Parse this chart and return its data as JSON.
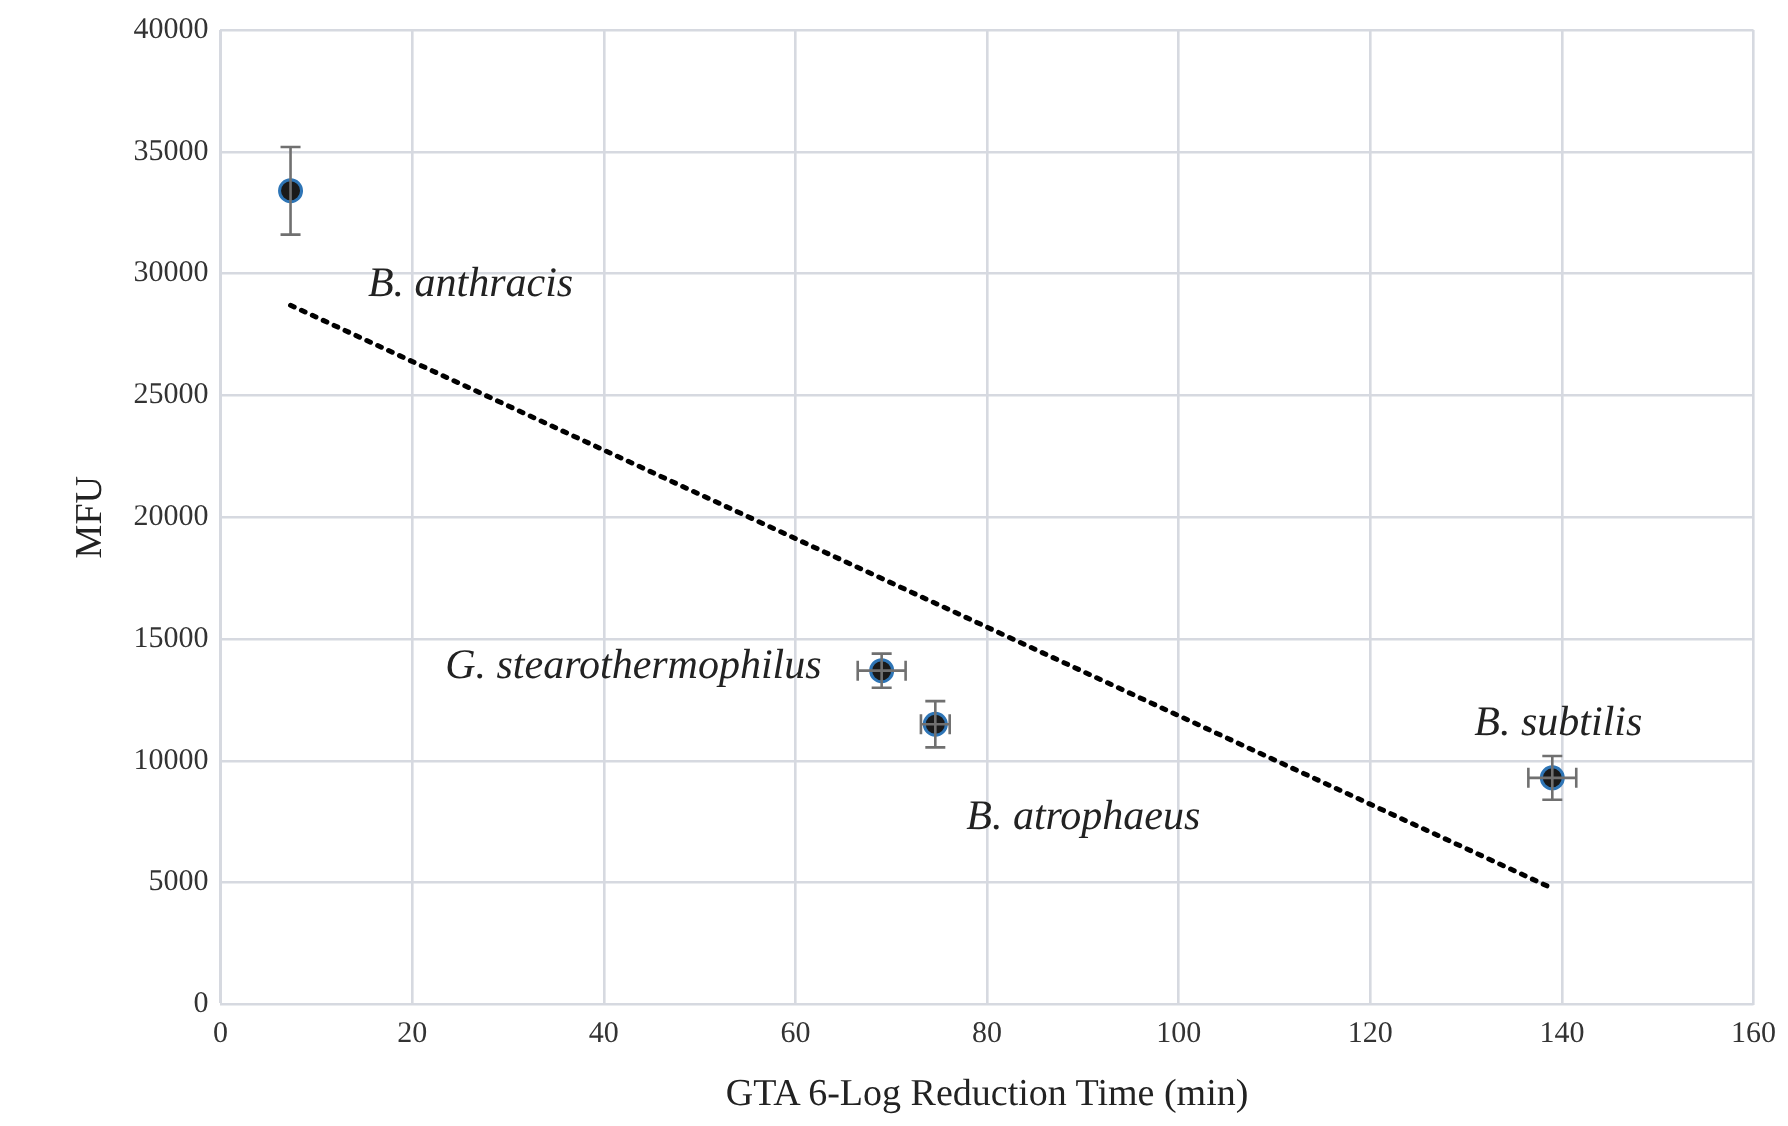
{
  "chart_data": {
    "type": "scatter",
    "xlabel": "GTA 6-Log Reduction Time (min)",
    "ylabel": "MFU",
    "xlim": [
      0,
      160
    ],
    "xticks": [
      0,
      20,
      40,
      60,
      80,
      100,
      120,
      140,
      160
    ],
    "ylim": [
      0,
      40000
    ],
    "yticks": [
      0,
      5000,
      10000,
      15000,
      20000,
      25000,
      30000,
      35000,
      40000
    ],
    "grid": true,
    "legend": false,
    "series": [
      {
        "color": "#1a1a1a",
        "marker": "circle",
        "x": [
          7.3,
          69,
          74.6,
          139
        ],
        "values": [
          33400,
          13700,
          11500,
          9300
        ],
        "errors": [
          1800,
          700,
          950,
          900
        ],
        "xerrors": [
          null,
          2.5,
          1.5,
          2.5
        ]
      },
      {
        "type": "line",
        "color": "#000000",
        "marker": "none",
        "line_style": "dotted",
        "x": [
          7.3,
          138.8
        ],
        "values": [
          28700,
          4800
        ]
      }
    ],
    "annotations": [
      {
        "text": "B. anthracis",
        "x": 7.3,
        "y": 33400
      },
      {
        "text": "G. stearothermophilus",
        "x": 69,
        "y": 13700
      },
      {
        "text": "B. atrophaeus",
        "x": 74.6,
        "y": 11500
      },
      {
        "text": "B. subtilis",
        "x": 139,
        "y": 9300
      }
    ]
  }
}
